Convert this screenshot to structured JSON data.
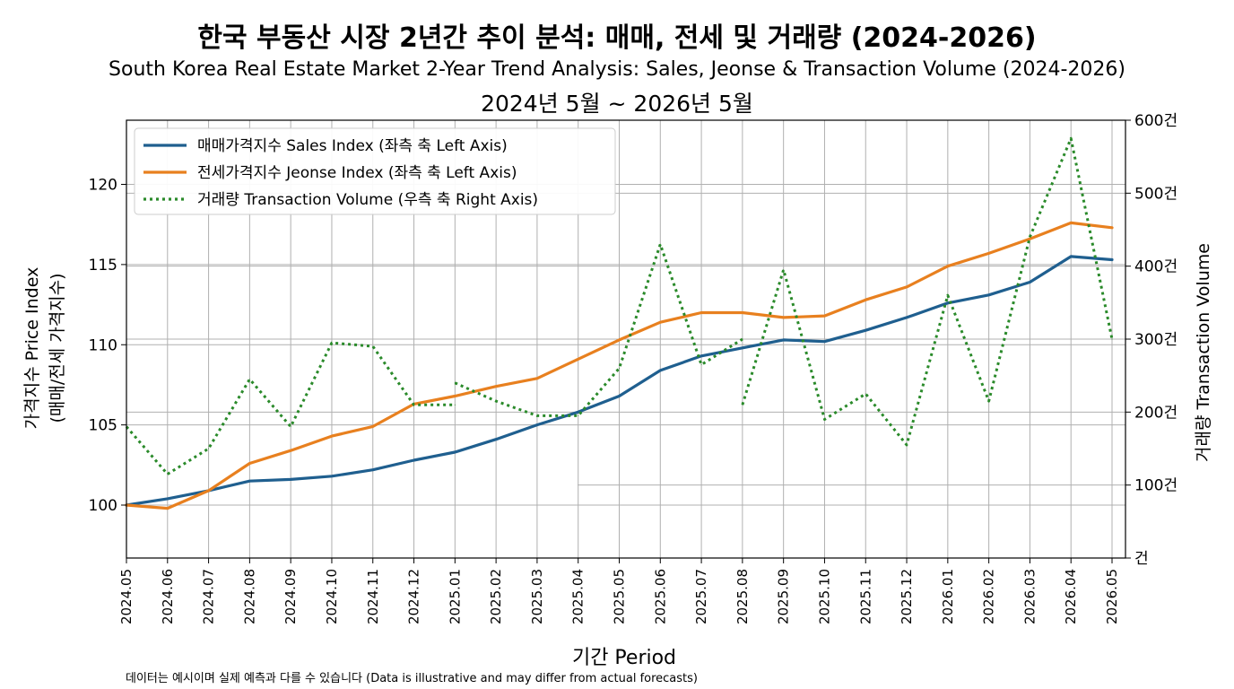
{
  "title": "한국 부동산 시장 2년간 추이 분석: 매매, 전세 및 거래량 (2024-2026)",
  "subtitle": "South Korea Real Estate Market 2-Year Trend Analysis: Sales, Jeonse & Transaction Volume (2024-2026)",
  "period": "2024년 5월 ~ 2026년 5월",
  "note": "데이터는 예시이며 실제 예측과 다를 수 있습니다 (Data is illustrative and may differ from actual forecasts)",
  "colors": {
    "sales": "#1f5f8f",
    "jeonse": "#e8801f",
    "volume": "#2a8a2a"
  },
  "chart_data": {
    "type": "line",
    "title": "한국 부동산 시장 2년간 추이 분석: 매매, 전세 및 거래량 (2024-2026)",
    "xlabel": "기간 Period",
    "ylabel_left": [
      "가격지수 Price Index",
      "(매매/전세 가격지수)"
    ],
    "ylabel_right": "거래량 Transaction Volume",
    "ylim_left": [
      96.7,
      124
    ],
    "ylim_right": [
      0,
      600
    ],
    "yticks_left": [
      100,
      105,
      110,
      115,
      120
    ],
    "yticks_right": [
      0,
      100,
      200,
      300,
      400,
      500,
      600
    ],
    "yticks_right_labels": [
      "건",
      "100건",
      "200건",
      "300건",
      "400건",
      "500건",
      "600건"
    ],
    "grid": true,
    "legend_position": "top-left",
    "x": [
      "2024.05",
      "2024.06",
      "2024.07",
      "2024.08",
      "2024.09",
      "2024.10",
      "2024.11",
      "2024.12",
      "2025.01",
      "2025.02",
      "2025.03",
      "2025.04",
      "2025.05",
      "2025.06",
      "2025.07",
      "2025.08",
      "2025.09",
      "2025.10",
      "2025.11",
      "2025.12",
      "2026.01",
      "2026.02",
      "2026.03",
      "2026.04",
      "2026.05"
    ],
    "series": [
      {
        "name": "매매가격지수 Sales Index (좌측 축 Left Axis)",
        "axis": "left",
        "style": "solid",
        "values": [
          100,
          100.4,
          100.9,
          101.5,
          101.6,
          101.8,
          102.2,
          102.8,
          103.3,
          104.1,
          105.0,
          105.8,
          106.8,
          108.4,
          109.3,
          109.8,
          110.3,
          110.2,
          110.9,
          111.7,
          112.6,
          113.1,
          113.9,
          115.5,
          115.3
        ]
      },
      {
        "name": "전세가격지수 Jeonse Index (좌측 축 Left Axis)",
        "axis": "left",
        "style": "solid",
        "values": [
          100,
          99.8,
          100.9,
          102.6,
          103.4,
          104.3,
          104.9,
          106.3,
          106.8,
          107.4,
          107.9,
          109.1,
          110.3,
          111.4,
          112.0,
          112.0,
          111.7,
          111.8,
          112.8,
          113.6,
          114.9,
          115.7,
          116.6,
          117.6,
          117.3
        ]
      },
      {
        "name": "거래량 Transaction Volume (우측 축 Right Axis)",
        "axis": "right",
        "style": "dotted",
        "values": [
          180,
          115,
          150,
          245,
          180,
          295,
          290,
          210,
          210,
          240,
          215,
          195,
          195,
          260,
          430,
          265,
          300,
          210,
          395,
          190,
          225,
          155,
          360,
          215,
          440,
          575,
          300
        ],
        "x": [
          "2024.05",
          "2024.06",
          "2024.07",
          "2024.08",
          "2024.09",
          "2024.10",
          "2024.11",
          "2024.12",
          "2025.01",
          "2025.01",
          "2025.02",
          "2025.03",
          "2025.04",
          "2025.05",
          "2025.06",
          "2025.07",
          "2025.08",
          "2025.08",
          "2025.09",
          "2025.10",
          "2025.11",
          "2025.12",
          "2026.01",
          "2026.02",
          "2026.03",
          "2026.04",
          "2026.05"
        ],
        "break_after": [
          8,
          16
        ]
      }
    ]
  }
}
